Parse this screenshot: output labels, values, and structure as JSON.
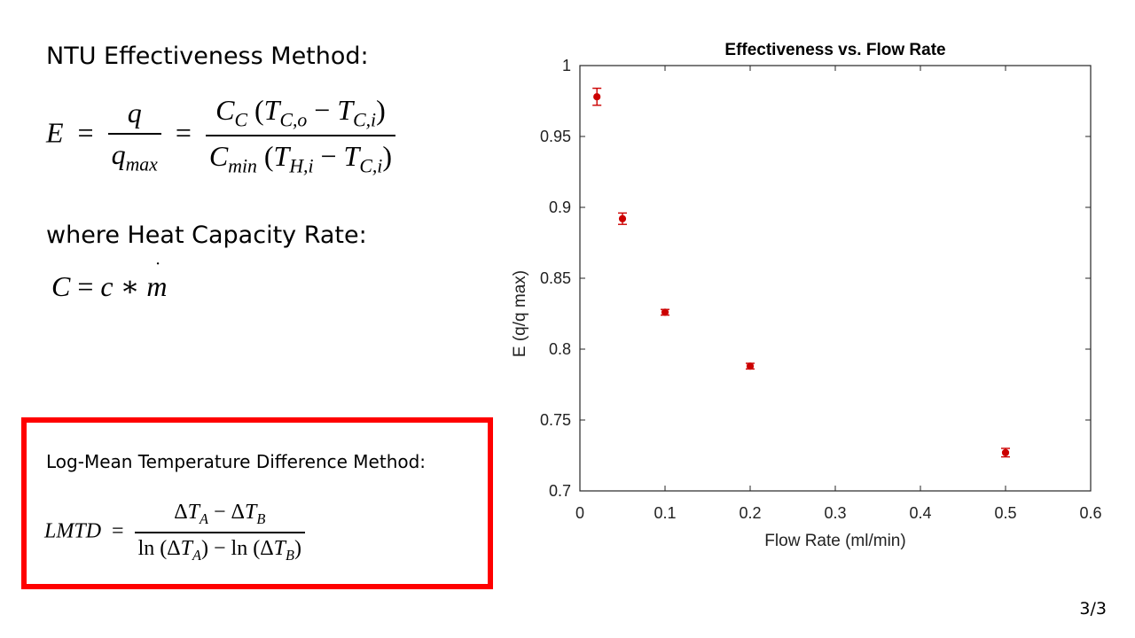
{
  "slide": {
    "ntu_heading": "NTU Effectiveness Method:",
    "hcr_heading": "where Heat Capacity Rate:",
    "lmtd_heading": "Log-Mean Temperature Difference Method:",
    "page_number": "3/3",
    "box_color": "#ff0000"
  },
  "chart_data": {
    "type": "scatter",
    "title": "Effectiveness vs. Flow Rate",
    "xlabel": "Flow Rate (ml/min)",
    "ylabel": "E (q/q max)",
    "xlim": [
      0,
      0.6
    ],
    "ylim": [
      0.7,
      1.0
    ],
    "xticks": [
      0,
      0.1,
      0.2,
      0.3,
      0.4,
      0.5,
      0.6
    ],
    "yticks": [
      0.7,
      0.75,
      0.8,
      0.85,
      0.9,
      0.95,
      1
    ],
    "grid": false,
    "marker_color": "#cc0000",
    "points": [
      {
        "x": 0.02,
        "y": 0.978,
        "err": 0.006
      },
      {
        "x": 0.05,
        "y": 0.892,
        "err": 0.004
      },
      {
        "x": 0.1,
        "y": 0.826,
        "err": 0.002
      },
      {
        "x": 0.2,
        "y": 0.788,
        "err": 0.002
      },
      {
        "x": 0.5,
        "y": 0.727,
        "err": 0.003
      }
    ]
  }
}
